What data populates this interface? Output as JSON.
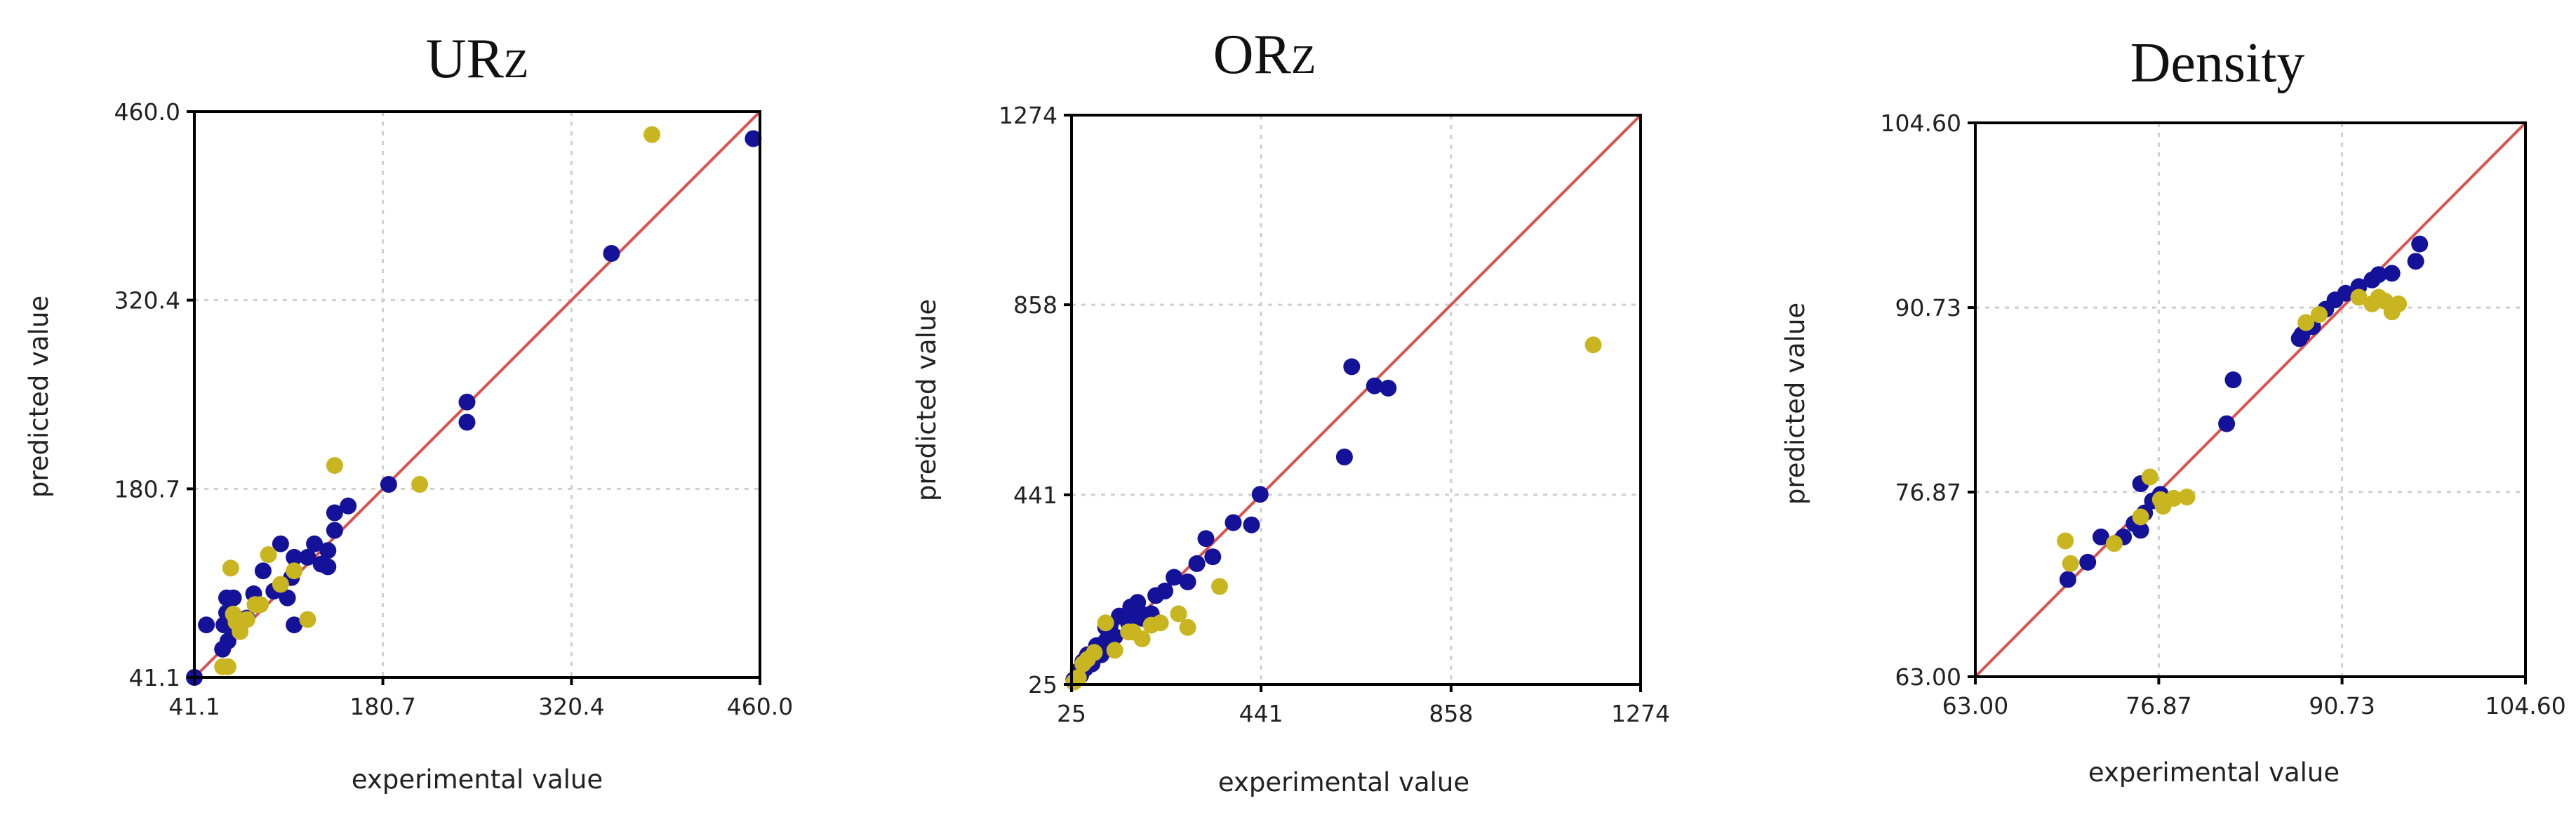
{
  "colors": {
    "train": "#15129a",
    "test": "#c9b520",
    "reference_line": "#d9534f"
  },
  "chart_data": [
    {
      "type": "scatter",
      "title_main": "UR",
      "title_sub": "Z",
      "xlabel": "experimental value",
      "ylabel": "predicted value",
      "xlim": [
        41.1,
        460.0
      ],
      "ylim": [
        41.1,
        460.0
      ],
      "xticks": [
        "41.1",
        "180.7",
        "320.4",
        "460.0"
      ],
      "yticks": [
        "41.1",
        "180.7",
        "320.4",
        "460.0"
      ],
      "tick_values": [
        41.1,
        180.7,
        320.4,
        460.0
      ],
      "grid": true,
      "reference_line": "y = x",
      "series": [
        {
          "color_key": "train",
          "points": [
            [
              41.1,
              41.1
            ],
            [
              50,
              80
            ],
            [
              62,
              62
            ],
            [
              63,
              80
            ],
            [
              65,
              100
            ],
            [
              65,
              89
            ],
            [
              66,
              68
            ],
            [
              70,
              100
            ],
            [
              70,
              76
            ],
            [
              72,
              82
            ],
            [
              68,
              85
            ],
            [
              80,
              85
            ],
            [
              85,
              103
            ],
            [
              92,
              120
            ],
            [
              100,
              105
            ],
            [
              105,
              140
            ],
            [
              110,
              100
            ],
            [
              113,
              115
            ],
            [
              115,
              80
            ],
            [
              115,
              130
            ],
            [
              125,
              130
            ],
            [
              130,
              140
            ],
            [
              135,
              125
            ],
            [
              140,
              123
            ],
            [
              140,
              135
            ],
            [
              145,
              150
            ],
            [
              145,
              163
            ],
            [
              155,
              168
            ],
            [
              185,
              184
            ],
            [
              243,
              230
            ],
            [
              243,
              245
            ],
            [
              350,
              355
            ],
            [
              455,
              440
            ]
          ]
        },
        {
          "color_key": "test",
          "points": [
            [
              62,
              49
            ],
            [
              66,
              49
            ],
            [
              68,
              122
            ],
            [
              70,
              88
            ],
            [
              72,
              82
            ],
            [
              75,
              75
            ],
            [
              80,
              84
            ],
            [
              86,
              95
            ],
            [
              90,
              95
            ],
            [
              96,
              132
            ],
            [
              105,
              110
            ],
            [
              115,
              120
            ],
            [
              125,
              84
            ],
            [
              145,
              198
            ],
            [
              208,
              184
            ],
            [
              380,
              443
            ]
          ]
        }
      ]
    },
    {
      "type": "scatter",
      "title_main": "OR",
      "title_sub": "Z",
      "xlabel": "experimental value",
      "ylabel": "predicted value",
      "xlim": [
        25,
        1274
      ],
      "ylim": [
        25,
        1274
      ],
      "xticks": [
        "25",
        "441",
        "858",
        "1274"
      ],
      "yticks": [
        "25",
        "441",
        "858",
        "1274"
      ],
      "tick_values": [
        25,
        441,
        858,
        1274
      ],
      "grid": true,
      "reference_line": "y = x",
      "series": [
        {
          "color_key": "train",
          "points": [
            [
              30,
              35
            ],
            [
              40,
              55
            ],
            [
              45,
              45
            ],
            [
              50,
              75
            ],
            [
              55,
              60
            ],
            [
              60,
              90
            ],
            [
              70,
              70
            ],
            [
              75,
              95
            ],
            [
              80,
              110
            ],
            [
              90,
              90
            ],
            [
              100,
              150
            ],
            [
              100,
              120
            ],
            [
              110,
              155
            ],
            [
              120,
              130
            ],
            [
              130,
              175
            ],
            [
              150,
              160
            ],
            [
              155,
              195
            ],
            [
              170,
              190
            ],
            [
              170,
              205
            ],
            [
              180,
              170
            ],
            [
              200,
              180
            ],
            [
              210,
              220
            ],
            [
              230,
              230
            ],
            [
              250,
              260
            ],
            [
              280,
              250
            ],
            [
              300,
              290
            ],
            [
              320,
              345
            ],
            [
              335,
              305
            ],
            [
              380,
              380
            ],
            [
              420,
              375
            ],
            [
              439,
              442
            ],
            [
              624,
              524
            ],
            [
              640,
              722
            ],
            [
              690,
              680
            ],
            [
              720,
              675
            ]
          ]
        },
        {
          "color_key": "test",
          "points": [
            [
              30,
              30
            ],
            [
              40,
              40
            ],
            [
              50,
              70
            ],
            [
              60,
              80
            ],
            [
              75,
              95
            ],
            [
              100,
              160
            ],
            [
              120,
              100
            ],
            [
              150,
              140
            ],
            [
              160,
              140
            ],
            [
              180,
              125
            ],
            [
              200,
              155
            ],
            [
              220,
              160
            ],
            [
              260,
              180
            ],
            [
              280,
              150
            ],
            [
              350,
              240
            ],
            [
              1170,
              770
            ]
          ]
        }
      ]
    },
    {
      "type": "scatter",
      "title_main": "Density",
      "title_sub": "",
      "xlabel": "experimental value",
      "ylabel": "predicted value",
      "xlim": [
        63.0,
        104.6
      ],
      "ylim": [
        63.0,
        104.6
      ],
      "xticks": [
        "63.00",
        "76.87",
        "90.73",
        "104.60"
      ],
      "yticks": [
        "63.00",
        "76.87",
        "90.73",
        "104.60"
      ],
      "tick_values": [
        63.0,
        76.87,
        90.73,
        104.6
      ],
      "grid": true,
      "reference_line": "y = x",
      "series": [
        {
          "color_key": "train",
          "points": [
            [
              70.0,
              70.3
            ],
            [
              71.5,
              71.6
            ],
            [
              72.5,
              73.5
            ],
            [
              74.2,
              73.5
            ],
            [
              75.0,
              74.5
            ],
            [
              75.5,
              74.0
            ],
            [
              75.8,
              75.3
            ],
            [
              76.4,
              76.2
            ],
            [
              77.0,
              76.7
            ],
            [
              75.5,
              77.5
            ],
            [
              82.0,
              82.0
            ],
            [
              82.5,
              85.3
            ],
            [
              87.5,
              88.4
            ],
            [
              87.7,
              88.7
            ],
            [
              88.5,
              89.3
            ],
            [
              89.5,
              90.6
            ],
            [
              90.2,
              91.3
            ],
            [
              91.0,
              91.8
            ],
            [
              92.0,
              92.3
            ],
            [
              93.0,
              92.8
            ],
            [
              93.5,
              93.2
            ],
            [
              94.5,
              93.3
            ],
            [
              96.3,
              94.2
            ],
            [
              96.6,
              95.5
            ]
          ]
        },
        {
          "color_key": "test",
          "points": [
            [
              69.8,
              73.2
            ],
            [
              70.2,
              71.5
            ],
            [
              73.5,
              73.0
            ],
            [
              75.5,
              75.0
            ],
            [
              76.2,
              78.0
            ],
            [
              77.0,
              76.3
            ],
            [
              77.2,
              75.8
            ],
            [
              78.0,
              76.4
            ],
            [
              79.0,
              76.5
            ],
            [
              88.0,
              89.6
            ],
            [
              89.0,
              90.2
            ],
            [
              92.0,
              91.5
            ],
            [
              93.0,
              91.0
            ],
            [
              93.5,
              91.5
            ],
            [
              94.0,
              91.2
            ],
            [
              94.5,
              90.4
            ],
            [
              95.0,
              91.0
            ]
          ]
        }
      ]
    }
  ]
}
